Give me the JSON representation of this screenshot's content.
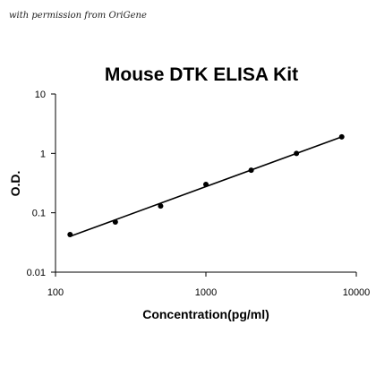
{
  "credit": "with permission from OriGene",
  "chart_data": {
    "type": "scatter",
    "title": "Mouse DTK ELISA Kit",
    "xlabel": "Concentration(pg/ml)",
    "ylabel": "O.D.",
    "x_scale": "log",
    "y_scale": "log",
    "xlim": [
      100,
      10000
    ],
    "ylim": [
      0.01,
      10
    ],
    "x_ticks": [
      {
        "value": 100,
        "label": "100"
      },
      {
        "value": 1000,
        "label": "1000"
      },
      {
        "value": 10000,
        "label": "10000"
      }
    ],
    "y_ticks": [
      {
        "value": 0.01,
        "label": "0.01"
      },
      {
        "value": 0.1,
        "label": "0.1"
      },
      {
        "value": 1,
        "label": "1"
      },
      {
        "value": 10,
        "label": "10"
      }
    ],
    "grid": false,
    "series": [
      {
        "points": [
          {
            "x": 125,
            "y": 0.043
          },
          {
            "x": 250,
            "y": 0.07
          },
          {
            "x": 500,
            "y": 0.13
          },
          {
            "x": 1000,
            "y": 0.3
          },
          {
            "x": 2000,
            "y": 0.52
          },
          {
            "x": 4000,
            "y": 1.0
          },
          {
            "x": 8000,
            "y": 1.9
          }
        ],
        "fit_line": {
          "x": [
            125,
            8000
          ],
          "y": [
            0.04,
            1.9
          ]
        }
      }
    ]
  }
}
